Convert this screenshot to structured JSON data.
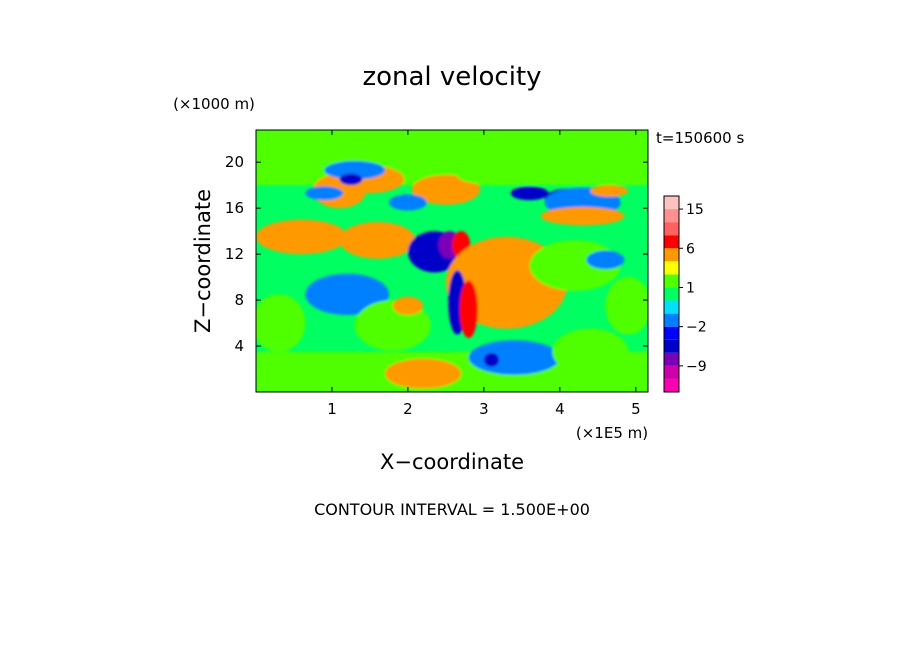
{
  "chart_data": {
    "type": "heatmap",
    "title": "zonal velocity",
    "xlabel": "X−coordinate",
    "ylabel": "Z−coordinate",
    "x_unit": "(×1E5 m)",
    "y_unit": "(×1000 m)",
    "time_label": "t=150600 s",
    "footer": "CONTOUR INTERVAL = 1.500E+00",
    "xlim": [
      0,
      5.16
    ],
    "ylim": [
      0,
      22.8
    ],
    "x_ticks": [
      1,
      2,
      3,
      4,
      5
    ],
    "y_ticks": [
      4,
      8,
      12,
      16,
      20
    ],
    "colorbar": {
      "levels": [
        -15,
        -12,
        -9,
        -6,
        -3,
        -2,
        -1,
        0,
        1,
        2,
        3,
        6,
        9,
        12,
        15,
        18
      ],
      "colors": [
        "#ff00b0",
        "#cc00aa",
        "#7a00b8",
        "#0000c8",
        "#0000ff",
        "#0080ff",
        "#00e0ff",
        "#00ff60",
        "#50ff00",
        "#ffff00",
        "#ff9900",
        "#ff0000",
        "#ff6060",
        "#ff9090",
        "#ffc0c0"
      ],
      "tick_labels": [
        {
          "value": 15,
          "label": "15"
        },
        {
          "value": 6,
          "label": "6"
        },
        {
          "value": 1,
          "label": "1"
        },
        {
          "value": -2,
          "label": "−2"
        },
        {
          "value": -9,
          "label": "−9"
        }
      ]
    },
    "field": {
      "background": "#00ff60",
      "features": [
        {
          "kind": "band",
          "y": [
            18,
            22.8
          ],
          "value": 1.5
        },
        {
          "kind": "band",
          "y": [
            0,
            3.5
          ],
          "value": 1.5
        },
        {
          "kind": "blob",
          "x": 1.1,
          "y": 17.5,
          "rx": 0.35,
          "ry": 1.5,
          "value": 3
        },
        {
          "kind": "blob",
          "x": 1.5,
          "y": 18.5,
          "rx": 0.45,
          "ry": 1.2,
          "value": 3
        },
        {
          "kind": "blob",
          "x": 1.3,
          "y": 19.3,
          "rx": 0.4,
          "ry": 0.8,
          "value": -1.5
        },
        {
          "kind": "blob",
          "x": 1.25,
          "y": 18.5,
          "rx": 0.15,
          "ry": 0.5,
          "value": -4
        },
        {
          "kind": "blob",
          "x": 0.9,
          "y": 17.3,
          "rx": 0.25,
          "ry": 0.6,
          "value": -1.5
        },
        {
          "kind": "blob",
          "x": 2.5,
          "y": 17.6,
          "rx": 0.45,
          "ry": 1.3,
          "value": 3
        },
        {
          "kind": "blob",
          "x": 2.0,
          "y": 16.5,
          "rx": 0.25,
          "ry": 0.7,
          "value": -1.5
        },
        {
          "kind": "blob",
          "x": 3.2,
          "y": 18.8,
          "rx": 0.55,
          "ry": 0.8,
          "value": 1.5
        },
        {
          "kind": "blob",
          "x": 3.6,
          "y": 17.3,
          "rx": 0.25,
          "ry": 0.6,
          "value": -4
        },
        {
          "kind": "blob",
          "x": 4.1,
          "y": 16.8,
          "rx": 0.3,
          "ry": 0.9,
          "value": -4
        },
        {
          "kind": "blob",
          "x": 4.3,
          "y": 16.5,
          "rx": 0.5,
          "ry": 1.3,
          "value": -1.5
        },
        {
          "kind": "blob",
          "x": 4.3,
          "y": 15.3,
          "rx": 0.55,
          "ry": 0.8,
          "value": 3
        },
        {
          "kind": "blob",
          "x": 4.65,
          "y": 17.5,
          "rx": 0.25,
          "ry": 0.5,
          "value": 3
        },
        {
          "kind": "blob",
          "x": 0.6,
          "y": 13.5,
          "rx": 0.6,
          "ry": 1.5,
          "value": 3
        },
        {
          "kind": "blob",
          "x": 1.6,
          "y": 13.2,
          "rx": 0.5,
          "ry": 1.6,
          "value": 3
        },
        {
          "kind": "blob",
          "x": 2.35,
          "y": 12.2,
          "rx": 0.35,
          "ry": 1.8,
          "value": -5
        },
        {
          "kind": "blob",
          "x": 2.55,
          "y": 12.8,
          "rx": 0.15,
          "ry": 1.2,
          "value": -8
        },
        {
          "kind": "blob",
          "x": 2.7,
          "y": 12.8,
          "rx": 0.12,
          "ry": 1.2,
          "value": 6
        },
        {
          "kind": "blob",
          "x": 3.3,
          "y": 9.5,
          "rx": 0.8,
          "ry": 4,
          "value": 3
        },
        {
          "kind": "blob",
          "x": 4.2,
          "y": 11.0,
          "rx": 0.6,
          "ry": 2.2,
          "value": 1.5
        },
        {
          "kind": "blob",
          "x": 4.6,
          "y": 11.5,
          "rx": 0.25,
          "ry": 0.8,
          "value": -1.5
        },
        {
          "kind": "blob",
          "x": 1.2,
          "y": 8.5,
          "rx": 0.55,
          "ry": 1.8,
          "value": -1.5
        },
        {
          "kind": "blob",
          "x": 1.8,
          "y": 5.8,
          "rx": 0.5,
          "ry": 2.2,
          "value": 1.5
        },
        {
          "kind": "blob",
          "x": 2.0,
          "y": 7.5,
          "rx": 0.2,
          "ry": 0.8,
          "value": 3
        },
        {
          "kind": "blob",
          "x": 2.65,
          "y": 7.8,
          "rx": 0.12,
          "ry": 2.8,
          "value": -5
        },
        {
          "kind": "blob",
          "x": 2.8,
          "y": 7.2,
          "rx": 0.12,
          "ry": 2.5,
          "value": 6
        },
        {
          "kind": "blob",
          "x": 3.4,
          "y": 3.0,
          "rx": 0.6,
          "ry": 1.5,
          "value": -1.5
        },
        {
          "kind": "blob",
          "x": 3.1,
          "y": 2.8,
          "rx": 0.1,
          "ry": 0.6,
          "value": -4
        },
        {
          "kind": "blob",
          "x": 2.2,
          "y": 1.6,
          "rx": 0.5,
          "ry": 1.3,
          "value": 3
        },
        {
          "kind": "blob",
          "x": 4.4,
          "y": 3.5,
          "rx": 0.5,
          "ry": 2.0,
          "value": 1.5
        },
        {
          "kind": "blob",
          "x": 4.9,
          "y": 7.5,
          "rx": 0.3,
          "ry": 2.5,
          "value": 1.5
        },
        {
          "kind": "blob",
          "x": 0.3,
          "y": 6.0,
          "rx": 0.35,
          "ry": 2.5,
          "value": 1.5
        }
      ]
    }
  }
}
